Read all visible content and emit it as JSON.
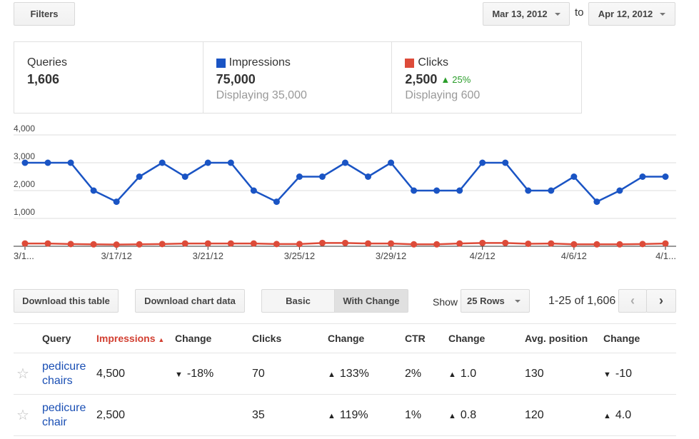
{
  "filters_label": "Filters",
  "date_from": "Mar 13, 2012",
  "to_label": "to",
  "date_to": "Apr 12, 2012",
  "summary": {
    "queries": {
      "label": "Queries",
      "value": "1,606"
    },
    "impressions": {
      "label": "Impressions",
      "value": "75,000",
      "sub": "Displaying 35,000",
      "color": "#1a54c4"
    },
    "clicks": {
      "label": "Clicks",
      "value": "2,500",
      "change": "25%",
      "sub": "Displaying 600",
      "color": "#dd4b39"
    }
  },
  "chart_data": {
    "type": "line",
    "y_ticks": [
      "4,000",
      "3,000",
      "2,000",
      "1,000"
    ],
    "ylim": [
      0,
      4000
    ],
    "x_tick_labels": [
      "3/1...",
      "3/17/12",
      "3/21/12",
      "3/25/12",
      "3/29/12",
      "4/2/12",
      "4/6/12",
      "4/1..."
    ],
    "x_tick_index": [
      0,
      4,
      8,
      12,
      16,
      20,
      24,
      28
    ],
    "series": [
      {
        "name": "Impressions",
        "color": "#1a54c4",
        "values": [
          3000,
          3000,
          3000,
          2000,
          1600,
          2500,
          3000,
          2500,
          3000,
          3000,
          2000,
          1600,
          2500,
          2500,
          3000,
          2500,
          3000,
          2000,
          2000,
          2000,
          3000,
          3000,
          2000,
          2000,
          2500,
          1600,
          2000,
          2500,
          2500
        ]
      },
      {
        "name": "Clicks",
        "color": "#dd4b39",
        "values": [
          100,
          100,
          80,
          70,
          60,
          70,
          80,
          100,
          100,
          100,
          100,
          80,
          80,
          120,
          120,
          100,
          100,
          70,
          70,
          100,
          120,
          120,
          90,
          100,
          70,
          70,
          70,
          80,
          100
        ]
      }
    ]
  },
  "buttons": {
    "download_table": "Download this table",
    "download_chart": "Download chart data",
    "basic": "Basic",
    "with_change": "With Change"
  },
  "show_label": "Show",
  "rows_select": "25 Rows",
  "range_label": "1-25 of 1,606",
  "table": {
    "headers": [
      "Query",
      "Impressions",
      "Change",
      "Clicks",
      "Change",
      "CTR",
      "Change",
      "Avg. position",
      "Change"
    ],
    "rows": [
      {
        "query": "pedicure chairs",
        "impressions": "4,500",
        "imp_change": "-18%",
        "clicks": "70",
        "clicks_change": "133%",
        "ctr": "2%",
        "ctr_change": "1.0",
        "avg_pos": "130",
        "pos_change": "-10"
      },
      {
        "query": "pedicure chair",
        "impressions": "2,500",
        "imp_change": "",
        "clicks": "35",
        "clicks_change": "119%",
        "ctr": "1%",
        "ctr_change": "0.8",
        "avg_pos": "120",
        "pos_change": "4.0"
      }
    ]
  }
}
